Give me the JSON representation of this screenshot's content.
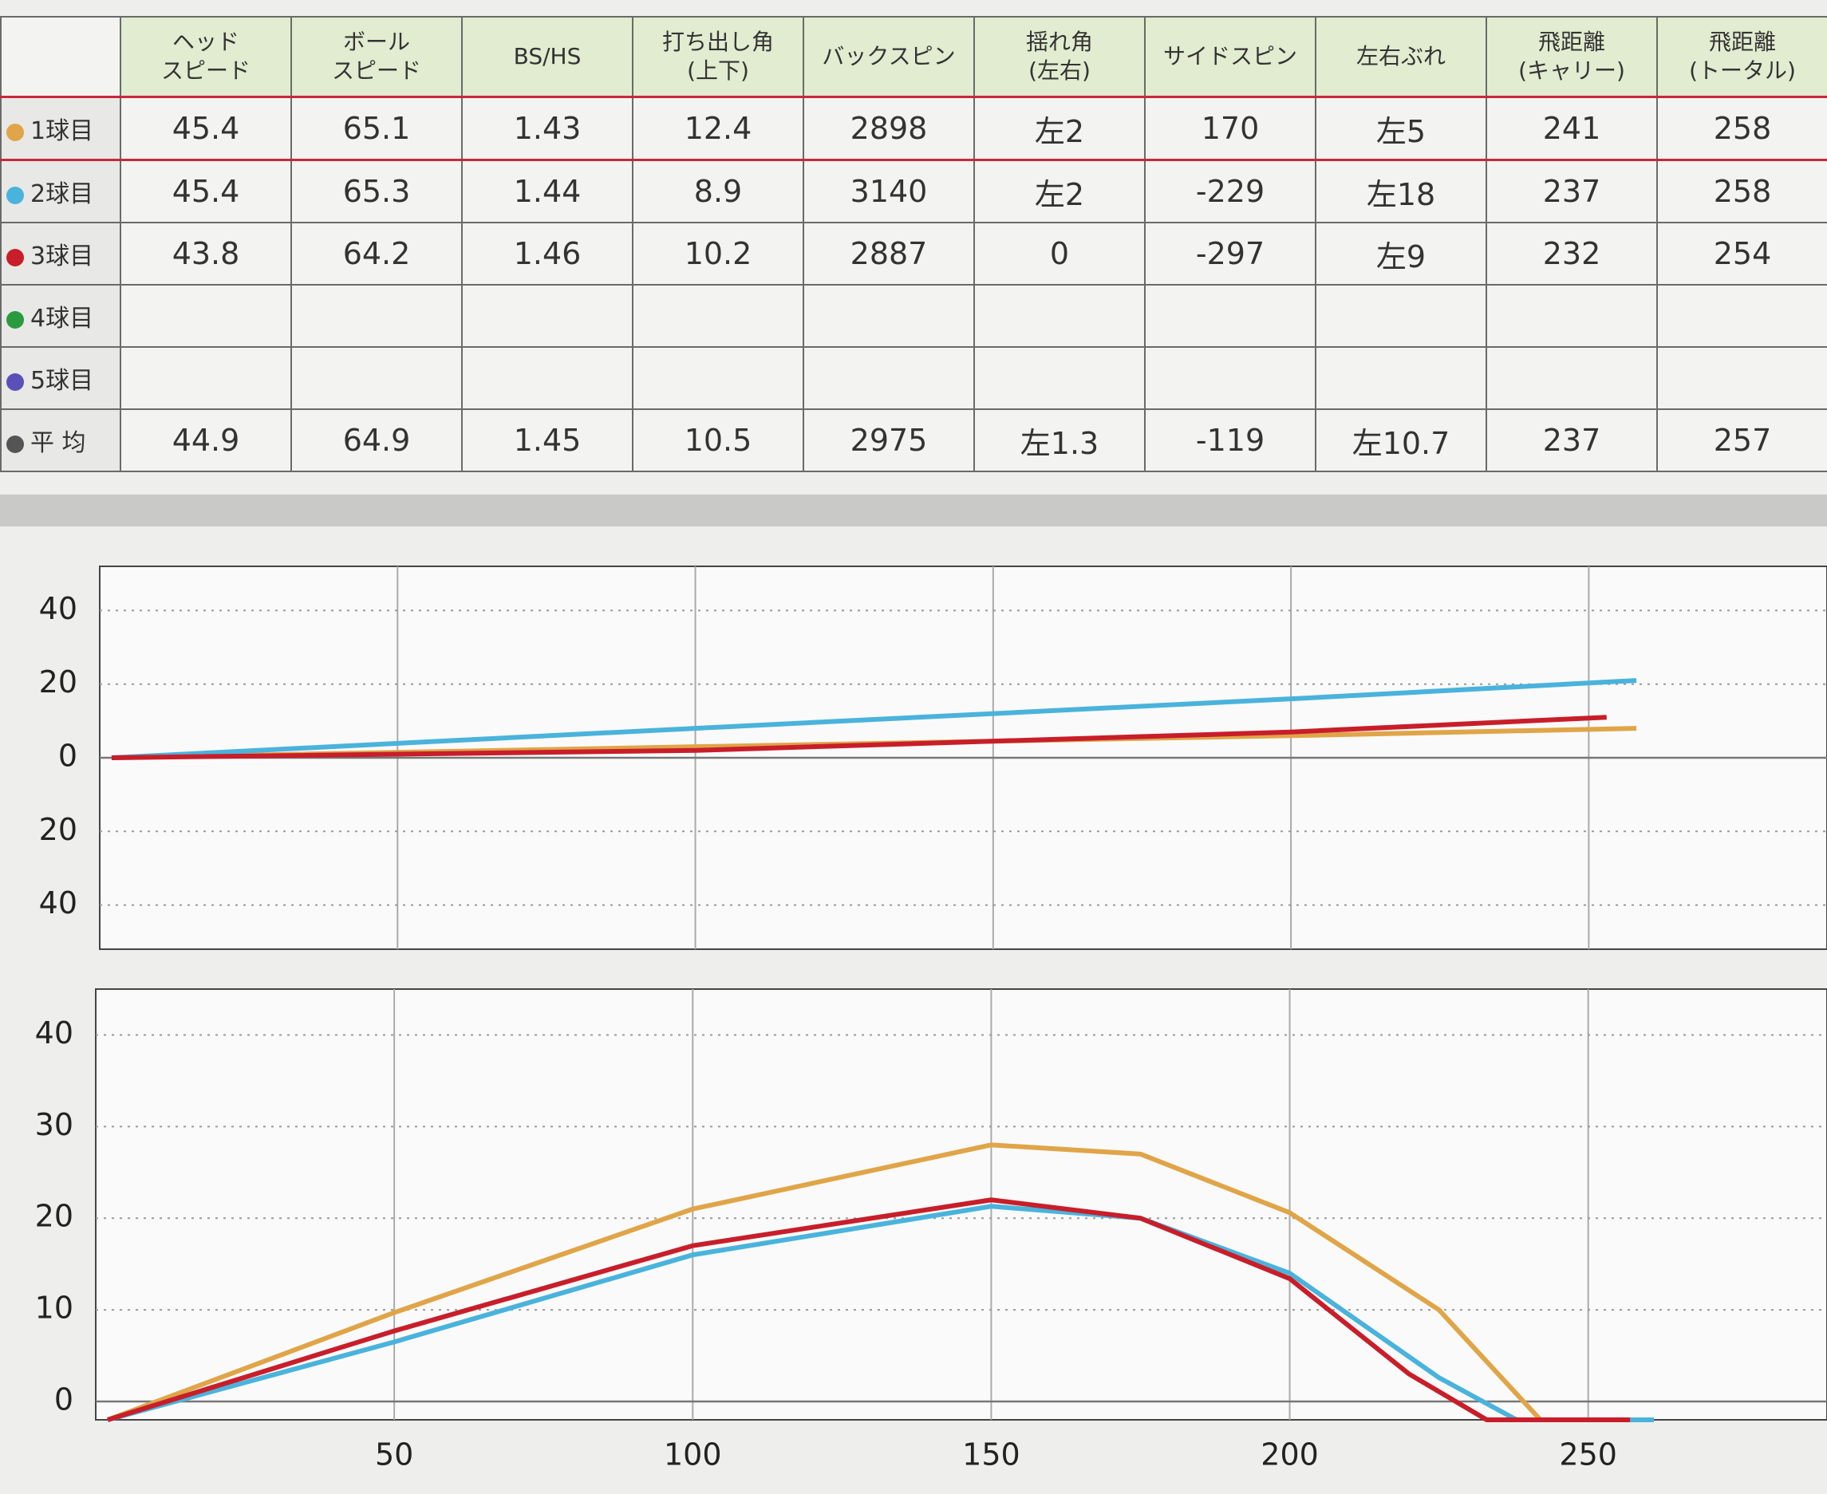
{
  "table": {
    "headers": [
      "ヘッド\nスピード",
      "ボール\nスピード",
      "BS/HS",
      "打ち出し角\n(上下)",
      "バックスピン",
      "揺れ角\n(左右)",
      "サイドスピン",
      "左右ぶれ",
      "飛距離\n(キャリー)",
      "飛距離\n(トータル)"
    ],
    "rows": [
      {
        "label": "1球目",
        "cells": [
          45.4,
          65.1,
          1.43,
          12.4,
          2898,
          "左2",
          170,
          "左5",
          241,
          258
        ]
      },
      {
        "label": "2球目",
        "cells": [
          45.4,
          65.3,
          1.44,
          8.9,
          3140,
          "左2",
          -229,
          "左18",
          237,
          258
        ]
      },
      {
        "label": "3球目",
        "cells": [
          43.8,
          64.2,
          1.46,
          10.2,
          2887,
          0,
          -297,
          "左9",
          232,
          254
        ]
      },
      {
        "label": "4球目",
        "cells": []
      },
      {
        "label": "5球目",
        "cells": []
      },
      {
        "label": "平 均",
        "cells": [
          44.9,
          64.9,
          1.45,
          10.5,
          2975,
          "左1.3",
          -119,
          "左10.7",
          237,
          257
        ]
      }
    ]
  },
  "chart_data": [
    {
      "type": "line",
      "xlim": [
        0,
        290
      ],
      "ylim": [
        -52,
        52
      ],
      "xticks": [
        50,
        100,
        150,
        200,
        250
      ],
      "show_xtick_labels": false,
      "yticks": [
        40,
        20,
        0,
        {
          "value": -20,
          "label": "20"
        },
        {
          "value": -40,
          "label": "40"
        }
      ],
      "grid": true,
      "series": [
        {
          "color": "#e0a548",
          "x": [
            2,
            100,
            200,
            258
          ],
          "values": [
            0,
            3,
            6,
            8
          ]
        },
        {
          "color": "#4ab3dc",
          "x": [
            2,
            100,
            200,
            258
          ],
          "values": [
            0,
            8,
            16,
            21
          ]
        },
        {
          "color": "#c81e2a",
          "x": [
            2,
            100,
            200,
            253
          ],
          "values": [
            0,
            2,
            7,
            11
          ]
        }
      ]
    },
    {
      "type": "line",
      "xlim": [
        0,
        290
      ],
      "ylim": [
        -2,
        45
      ],
      "xticks": [
        50,
        100,
        150,
        200,
        250
      ],
      "show_xtick_labels": true,
      "yticks": [
        0,
        10,
        20,
        30,
        40
      ],
      "grid": true,
      "series": [
        {
          "color": "#e0a548",
          "x": [
            2,
            50,
            100,
            150,
            175,
            200,
            225,
            242
          ],
          "values": [
            -2,
            9.7,
            21,
            28,
            27,
            20.6,
            10,
            -2
          ]
        },
        {
          "color": "#4ab3dc",
          "x": [
            2,
            50,
            100,
            150,
            175,
            200,
            225,
            238,
            261
          ],
          "values": [
            -2,
            6.5,
            16,
            21.3,
            20,
            14,
            2.6,
            -2,
            -2
          ]
        },
        {
          "color": "#c81e2a",
          "x": [
            2,
            50,
            100,
            150,
            175,
            200,
            220,
            233,
            257
          ],
          "values": [
            -2,
            7.7,
            17,
            22,
            20,
            13.4,
            3,
            -2,
            -2
          ]
        }
      ]
    }
  ]
}
